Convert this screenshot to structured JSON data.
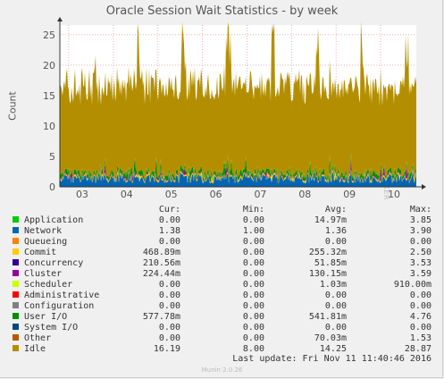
{
  "title": "Oracle Session Wait Statistics - by week",
  "watermark": "RRDTOOL / TOBI OETIKER",
  "footer": "Munin 2.0.26",
  "last_update": "Last update:  Fri Nov 11 11:40:46 2016",
  "legend_headers": {
    "cur": "Cur:",
    "min": "Min:",
    "avg": "Avg:",
    "max": "Max:"
  },
  "legend": [
    {
      "name": "Application",
      "color": "#00cc00",
      "cur": "0.00",
      "min": "0.00",
      "avg": "14.97m",
      "max": "3.85"
    },
    {
      "name": "Network",
      "color": "#0066b3",
      "cur": "1.38",
      "min": "1.00",
      "avg": "1.36",
      "max": "3.90"
    },
    {
      "name": "Queueing",
      "color": "#ff8000",
      "cur": "0.00",
      "min": "0.00",
      "avg": "0.00",
      "max": "0.00"
    },
    {
      "name": "Commit",
      "color": "#ffcc00",
      "cur": "468.89m",
      "min": "0.00",
      "avg": "255.32m",
      "max": "2.50"
    },
    {
      "name": "Concurrency",
      "color": "#330099",
      "cur": "210.56m",
      "min": "0.00",
      "avg": "51.85m",
      "max": "3.53"
    },
    {
      "name": "Cluster",
      "color": "#990099",
      "cur": "224.44m",
      "min": "0.00",
      "avg": "130.15m",
      "max": "3.59"
    },
    {
      "name": "Scheduler",
      "color": "#ccff00",
      "cur": "0.00",
      "min": "0.00",
      "avg": "1.03m",
      "max": "910.00m"
    },
    {
      "name": "Administrative",
      "color": "#ff0000",
      "cur": "0.00",
      "min": "0.00",
      "avg": "0.00",
      "max": "0.00"
    },
    {
      "name": "Configuration",
      "color": "#808080",
      "cur": "0.00",
      "min": "0.00",
      "avg": "0.00",
      "max": "0.00"
    },
    {
      "name": "User I/O",
      "color": "#008f00",
      "cur": "577.78m",
      "min": "0.00",
      "avg": "541.81m",
      "max": "4.76"
    },
    {
      "name": "System I/O",
      "color": "#00487d",
      "cur": "0.00",
      "min": "0.00",
      "avg": "0.00",
      "max": "0.00"
    },
    {
      "name": "Other",
      "color": "#b35a00",
      "cur": "0.00",
      "min": "0.00",
      "avg": "70.03m",
      "max": "1.53"
    },
    {
      "name": "Idle",
      "color": "#b38f00",
      "cur": "16.19",
      "min": "8.00",
      "avg": "14.25",
      "max": "28.87"
    }
  ],
  "chart_data": {
    "type": "area",
    "stacked": true,
    "ylabel": "Count",
    "ylim": [
      0,
      26
    ],
    "yticks": [
      0,
      5,
      10,
      15,
      20,
      25
    ],
    "grid": true,
    "x_tick_labels": [
      "03",
      "04",
      "05",
      "06",
      "07",
      "08",
      "09",
      "10"
    ],
    "series": [
      {
        "name": "Network",
        "avg": 1.36,
        "max": 3.9
      },
      {
        "name": "Commit",
        "avg": 0.255,
        "max": 2.5
      },
      {
        "name": "Cluster",
        "avg": 0.13,
        "max": 3.59
      },
      {
        "name": "User I/O",
        "avg": 0.542,
        "max": 4.76
      },
      {
        "name": "Idle",
        "avg": 14.25,
        "max": 28.87
      }
    ]
  }
}
